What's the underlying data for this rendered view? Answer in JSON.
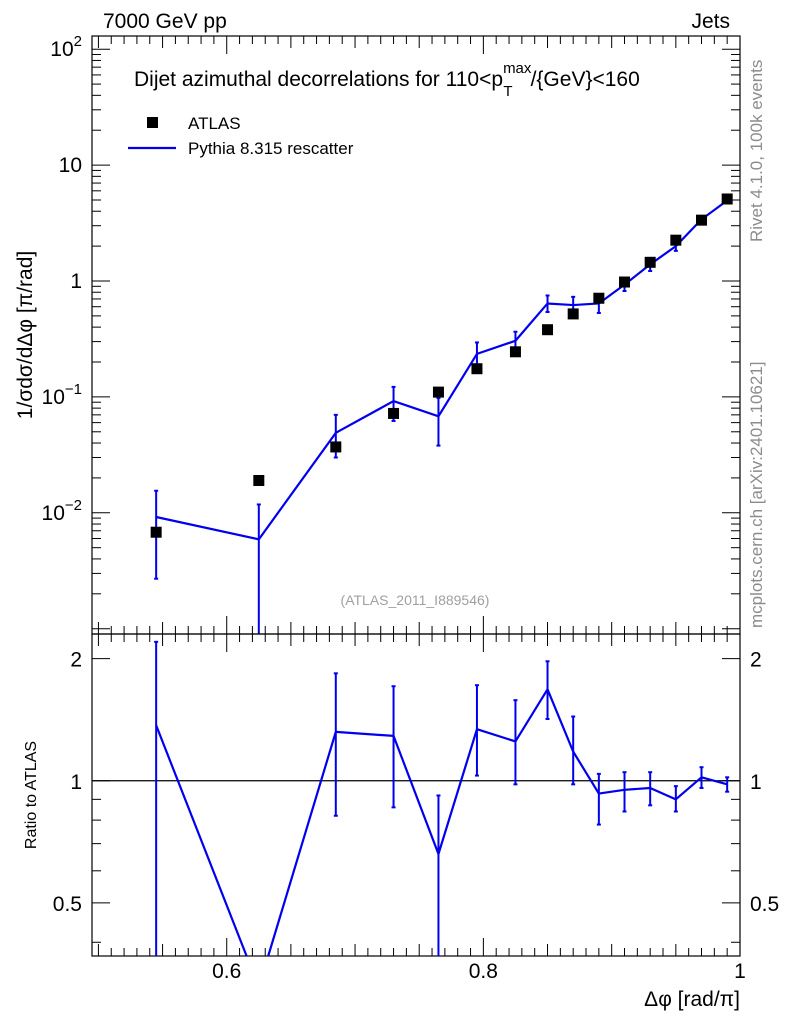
{
  "header": {
    "left": "7000 GeV pp",
    "right": "Jets"
  },
  "side_labels": {
    "rivet": "Rivet 4.1.0,  100k events",
    "mcplots": "mcplots.cern.ch [arXiv:2401.10621]"
  },
  "colors": {
    "mc": "#0000ee",
    "data": "#000000",
    "watermark": "#a0a0a0",
    "sidetext": "#8c8c8c"
  },
  "chart_data": [
    {
      "type": "scatter+line",
      "title_main": "Dijet azimuthal decorrelations for 110<p",
      "title_sup": "max",
      "title_sub": "T",
      "title_tail": "/{GeV}<160",
      "ylabel": "1/σdσ/dΔφ [π/rad]",
      "yscale": "log",
      "ylim": [
        0.0009,
        130
      ],
      "xlim": [
        0.495,
        1.0
      ],
      "yticks": [
        {
          "v": 100,
          "base": "10",
          "exp": "2"
        },
        {
          "v": 10,
          "base": "10",
          "exp": ""
        },
        {
          "v": 1,
          "base": "1",
          "exp": ""
        },
        {
          "v": 0.1,
          "base": "10",
          "exp": "−1"
        },
        {
          "v": 0.01,
          "base": "10",
          "exp": "−2"
        }
      ],
      "watermark": "(ATLAS_2011_I889546)",
      "legend": {
        "data_label": "ATLAS",
        "mc_label": "Pythia 8.315 rescatter",
        "position": "top-left"
      },
      "data": {
        "name": "ATLAS",
        "x": [
          0.545,
          0.625,
          0.685,
          0.73,
          0.765,
          0.795,
          0.825,
          0.85,
          0.87,
          0.89,
          0.91,
          0.93,
          0.95,
          0.97,
          0.99
        ],
        "y": [
          0.0068,
          0.019,
          0.037,
          0.072,
          0.11,
          0.175,
          0.245,
          0.38,
          0.52,
          0.71,
          0.98,
          1.45,
          2.25,
          3.35,
          5.1
        ]
      },
      "mc": {
        "name": "Pythia 8.315 rescatter",
        "x": [
          0.545,
          0.625,
          0.685,
          0.73,
          0.765,
          0.795,
          0.825,
          0.85,
          0.87,
          0.89,
          0.91,
          0.93,
          0.95,
          0.97,
          0.99
        ],
        "y": [
          0.0092,
          0.0059,
          0.049,
          0.092,
          0.068,
          0.235,
          0.305,
          0.64,
          0.62,
          0.64,
          0.93,
          1.39,
          2.0,
          3.4,
          4.95
        ],
        "err_low": [
          0.0027,
          0.0008,
          0.03,
          0.062,
          0.038,
          0.17,
          0.245,
          0.54,
          0.51,
          0.53,
          0.82,
          1.22,
          1.82,
          3.2,
          4.75
        ],
        "err_high": [
          0.0155,
          0.0118,
          0.07,
          0.122,
          0.098,
          0.295,
          0.365,
          0.75,
          0.73,
          0.76,
          1.04,
          1.56,
          2.18,
          3.6,
          5.15
        ]
      }
    },
    {
      "type": "line",
      "ylabel": "Ratio to ATLAS",
      "xlabel": "Δφ [rad/π]",
      "xlim": [
        0.495,
        1.0
      ],
      "ylim": [
        0.37,
        2.3
      ],
      "reference_line": 1,
      "xticks": [
        "0.6",
        "0.8",
        "1"
      ],
      "xtick_values": [
        0.6,
        0.8,
        1.0
      ],
      "yticks": [
        "0.5",
        "1",
        "2"
      ],
      "ytick_values": [
        0.5,
        1,
        2
      ],
      "series": [
        {
          "name": "Pythia 8.315 rescatter / ATLAS",
          "x": [
            0.545,
            0.625,
            0.685,
            0.73,
            0.765,
            0.795,
            0.825,
            0.85,
            0.87,
            0.89,
            0.91,
            0.93,
            0.95,
            0.97,
            0.99
          ],
          "y": [
            1.37,
            0.31,
            1.32,
            1.29,
            0.66,
            1.34,
            1.25,
            1.68,
            1.18,
            0.93,
            0.95,
            0.96,
            0.9,
            1.02,
            0.98
          ],
          "err_low": [
            0.37,
            0.37,
            0.82,
            0.86,
            0.37,
            1.03,
            0.98,
            1.42,
            0.98,
            0.78,
            0.84,
            0.87,
            0.84,
            0.96,
            0.94
          ],
          "err_high": [
            2.2,
            0.37,
            1.84,
            1.71,
            0.92,
            1.72,
            1.58,
            1.97,
            1.44,
            1.04,
            1.05,
            1.05,
            0.97,
            1.08,
            1.02
          ]
        }
      ]
    }
  ]
}
